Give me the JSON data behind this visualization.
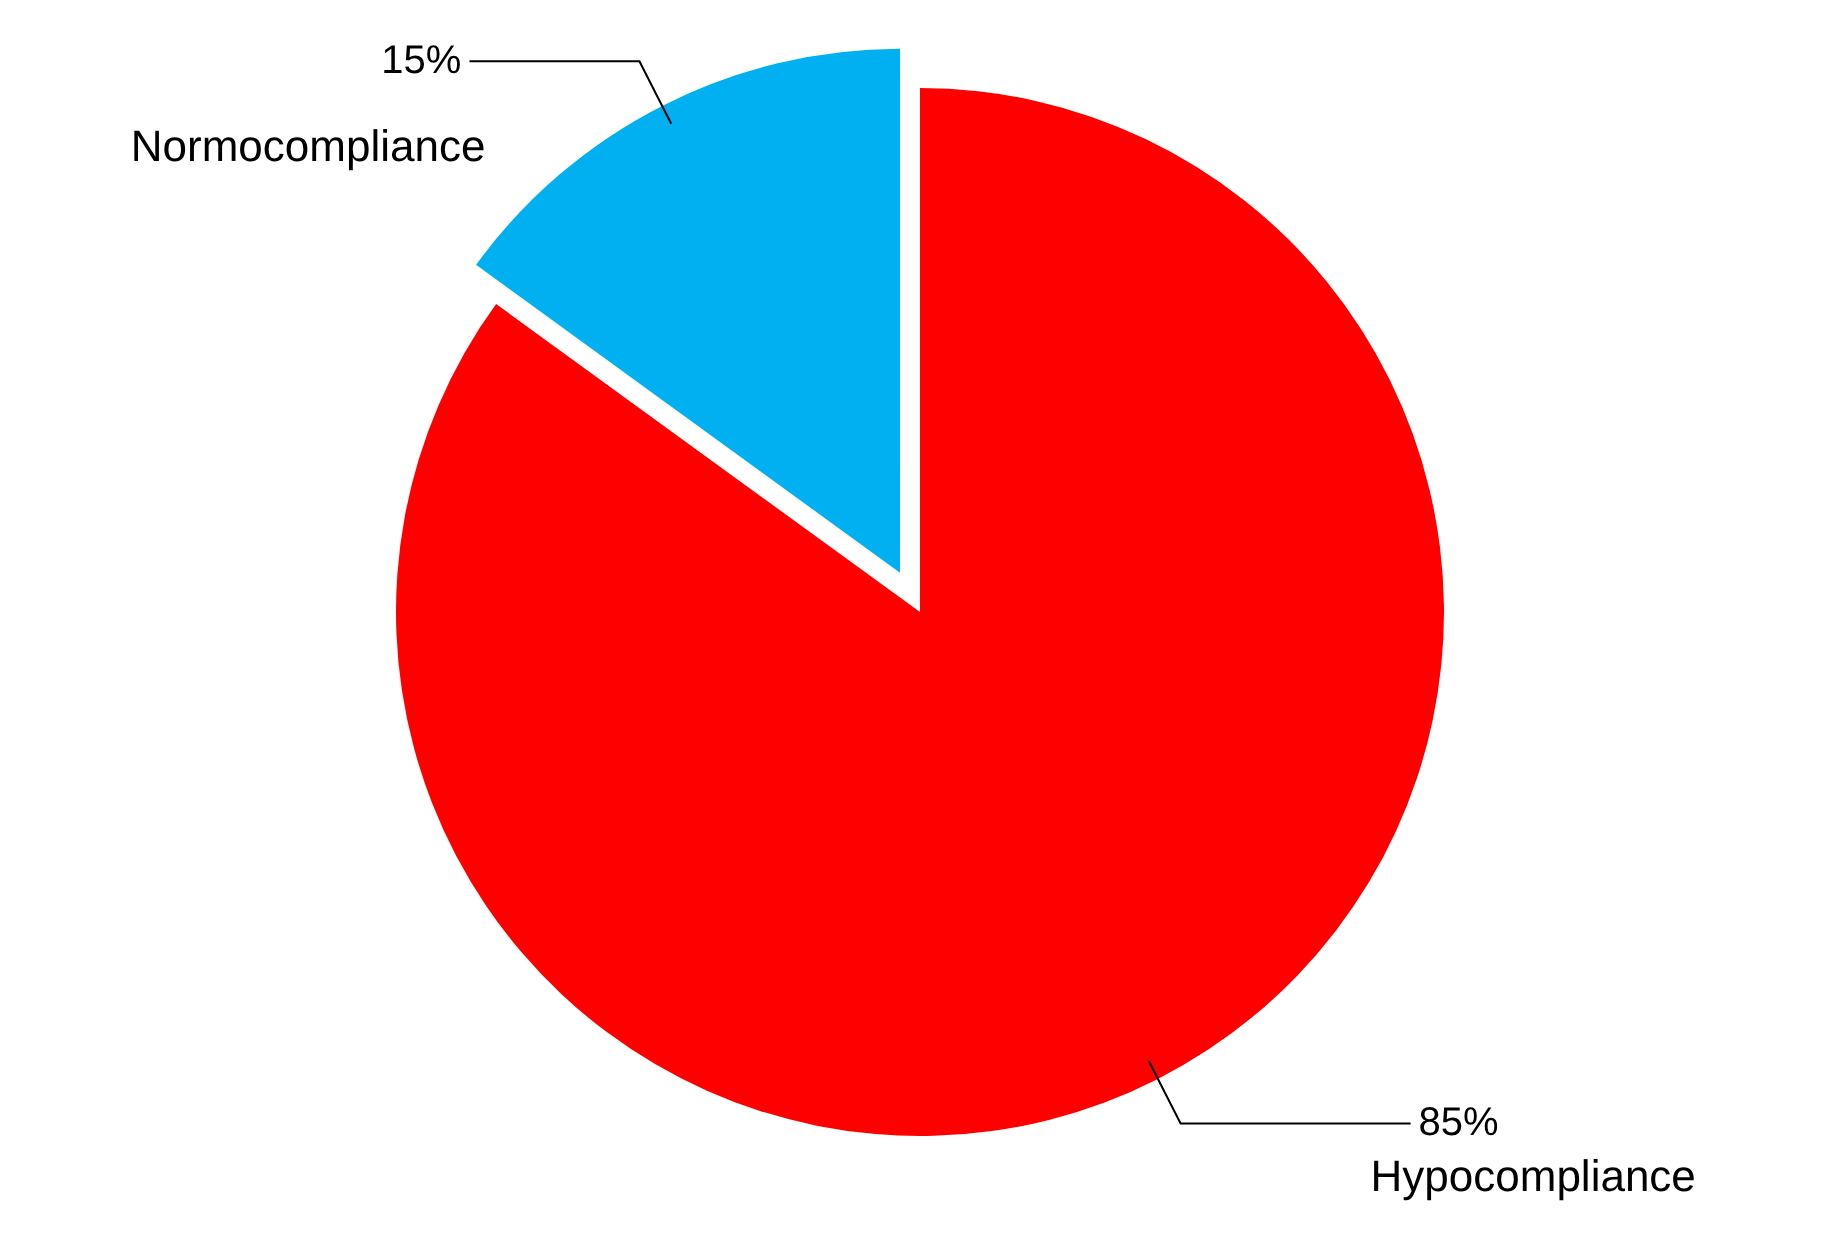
{
  "chart_data": {
    "type": "pie",
    "categories": [
      "Hypocompliance",
      "Normocompliance"
    ],
    "values": [
      85,
      15
    ],
    "colors": [
      "#ff0000",
      "#00b0f0"
    ],
    "value_labels": [
      "85%",
      "15%"
    ],
    "legend": false
  }
}
